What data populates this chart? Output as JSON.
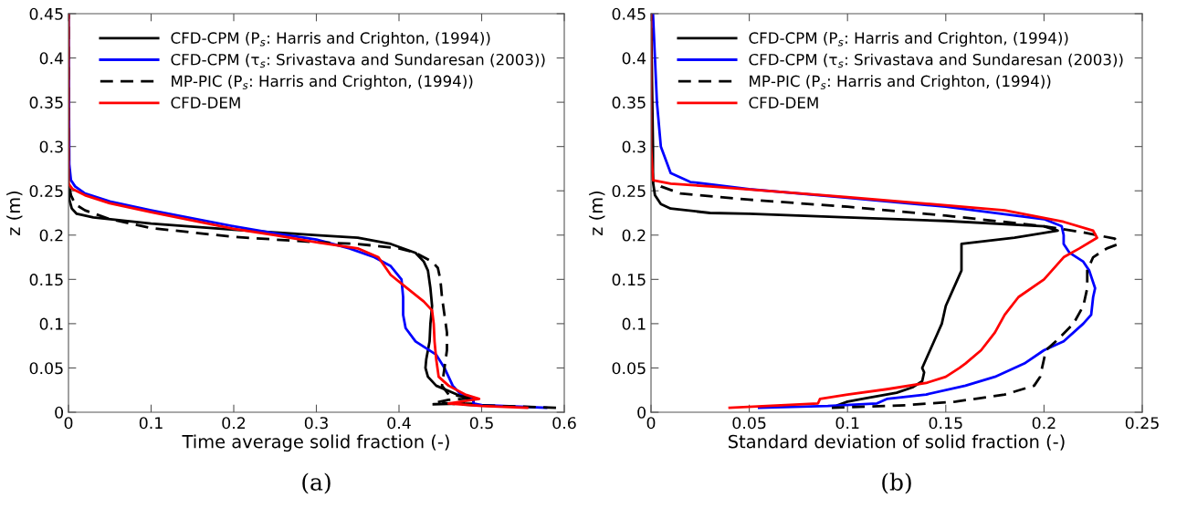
{
  "chart_data": [
    {
      "type": "line",
      "xlabel": "Time average solid fraction (-)",
      "ylabel": "z (m)",
      "annotations": [
        "(a)"
      ],
      "xlim": [
        0,
        0.6
      ],
      "xticks": [
        0,
        0.1,
        0.2,
        0.3,
        0.4,
        0.5,
        0.6
      ],
      "ylim": [
        0,
        0.45
      ],
      "yticks": [
        0,
        0.05,
        0.1,
        0.15,
        0.2,
        0.25,
        0.3,
        0.35,
        0.4,
        0.45
      ],
      "grid": false,
      "legend": "top right",
      "series": [
        {
          "name": "CFD-CPM (P$_{s}$: Harris and Crighton, (1994))",
          "color": "#000000",
          "line_style": "solid",
          "x": [
            0.442,
            0.49,
            0.49,
            0.47,
            0.445,
            0.435,
            0.432,
            0.433,
            0.435,
            0.437,
            0.438,
            0.44,
            0.438,
            0.435,
            0.43,
            0.42,
            0.39,
            0.35,
            0.3,
            0.2,
            0.1,
            0.03,
            0.01,
            0.004,
            0.001,
            0,
            0
          ],
          "values": [
            0.009,
            0.01,
            0.015,
            0.02,
            0.03,
            0.04,
            0.05,
            0.06,
            0.07,
            0.08,
            0.1,
            0.12,
            0.14,
            0.16,
            0.17,
            0.18,
            0.19,
            0.197,
            0.2,
            0.206,
            0.213,
            0.22,
            0.224,
            0.23,
            0.24,
            0.26,
            0.45
          ]
        },
        {
          "name": "CFD-CPM (τ$_{s}$: Srivastava and Sundaresan (2003))",
          "color": "#0000ff",
          "line_style": "solid",
          "x": [
            0.578,
            0.5,
            0.49,
            0.49,
            0.475,
            0.465,
            0.46,
            0.455,
            0.445,
            0.42,
            0.408,
            0.405,
            0.405,
            0.403,
            0.39,
            0.37,
            0.34,
            0.3,
            0.25,
            0.2,
            0.1,
            0.05,
            0.02,
            0.008,
            0.003,
            0.001,
            0
          ],
          "values": [
            0.005,
            0.008,
            0.01,
            0.014,
            0.02,
            0.03,
            0.04,
            0.05,
            0.065,
            0.08,
            0.095,
            0.11,
            0.13,
            0.15,
            0.165,
            0.175,
            0.185,
            0.195,
            0.202,
            0.21,
            0.228,
            0.238,
            0.247,
            0.255,
            0.262,
            0.28,
            0.45
          ]
        },
        {
          "name": "MP-PIC (P$_{s}$: Harris and Crighton, (1994))",
          "color": "#000000",
          "line_style": "dashed",
          "x": [
            0.59,
            0.49,
            0.445,
            0.46,
            0.49,
            0.46,
            0.452,
            0.455,
            0.458,
            0.458,
            0.455,
            0.452,
            0.45,
            0.447,
            0.44,
            0.42,
            0.4,
            0.35,
            0.3,
            0.2,
            0.1,
            0.05,
            0.02,
            0.008,
            0.003,
            0,
            0
          ],
          "values": [
            0.005,
            0.008,
            0.011,
            0.014,
            0.016,
            0.02,
            0.03,
            0.05,
            0.07,
            0.09,
            0.11,
            0.13,
            0.15,
            0.163,
            0.17,
            0.18,
            0.185,
            0.19,
            0.192,
            0.198,
            0.208,
            0.218,
            0.228,
            0.235,
            0.245,
            0.26,
            0.45
          ]
        },
        {
          "name": "CFD-DEM",
          "color": "#ff0000",
          "line_style": "solid",
          "x": [
            0.555,
            0.5,
            0.46,
            0.497,
            0.48,
            0.46,
            0.448,
            0.445,
            0.443,
            0.442,
            0.44,
            0.43,
            0.41,
            0.39,
            0.375,
            0.35,
            0.3,
            0.25,
            0.2,
            0.1,
            0.05,
            0.02,
            0.005,
            0,
            0
          ],
          "values": [
            0.005,
            0.007,
            0.01,
            0.015,
            0.02,
            0.03,
            0.04,
            0.06,
            0.08,
            0.1,
            0.115,
            0.125,
            0.14,
            0.155,
            0.175,
            0.185,
            0.192,
            0.2,
            0.207,
            0.226,
            0.236,
            0.245,
            0.252,
            0.258,
            0.45
          ]
        }
      ]
    },
    {
      "type": "line",
      "xlabel": "Standard deviation of solid fraction (-)",
      "ylabel": "z (m)",
      "annotations": [
        "(b)"
      ],
      "xlim": [
        0,
        0.25
      ],
      "xticks": [
        0,
        0.05,
        0.1,
        0.15,
        0.2,
        0.25
      ],
      "ylim": [
        0,
        0.45
      ],
      "yticks": [
        0,
        0.05,
        0.1,
        0.15,
        0.2,
        0.25,
        0.3,
        0.35,
        0.4,
        0.45
      ],
      "grid": false,
      "legend": "top right",
      "series": [
        {
          "name": "CFD-CPM (P$_{s}$: Harris and Crighton, (1994))",
          "color": "#000000",
          "line_style": "solid",
          "x": [
            0.095,
            0.1,
            0.11,
            0.125,
            0.133,
            0.138,
            0.139,
            0.138,
            0.14,
            0.145,
            0.148,
            0.15,
            0.153,
            0.158,
            0.158,
            0.158,
            0.185,
            0.207,
            0.2,
            0.15,
            0.1,
            0.05,
            0.03,
            0.01,
            0.005,
            0.002,
            0.001,
            0.001,
            0
          ],
          "values": [
            0.008,
            0.012,
            0.016,
            0.022,
            0.028,
            0.035,
            0.045,
            0.05,
            0.06,
            0.085,
            0.1,
            0.12,
            0.135,
            0.16,
            0.18,
            0.19,
            0.197,
            0.205,
            0.21,
            0.216,
            0.22,
            0.224,
            0.225,
            0.23,
            0.235,
            0.245,
            0.26,
            0.3,
            0.45
          ]
        },
        {
          "name": "CFD-CPM (τ$_{s}$: Srivastava and Sundaresan (2003))",
          "color": "#0000ff",
          "line_style": "solid",
          "x": [
            0.055,
            0.09,
            0.115,
            0.12,
            0.14,
            0.16,
            0.175,
            0.19,
            0.2,
            0.21,
            0.22,
            0.224,
            0.225,
            0.226,
            0.223,
            0.22,
            0.213,
            0.21,
            0.21,
            0.209,
            0.2,
            0.15,
            0.1,
            0.05,
            0.02,
            0.01,
            0.005,
            0.003,
            0.001
          ],
          "values": [
            0.005,
            0.007,
            0.01,
            0.015,
            0.02,
            0.03,
            0.04,
            0.055,
            0.07,
            0.08,
            0.1,
            0.11,
            0.13,
            0.14,
            0.16,
            0.17,
            0.18,
            0.19,
            0.2,
            0.21,
            0.218,
            0.232,
            0.242,
            0.252,
            0.26,
            0.27,
            0.3,
            0.35,
            0.45
          ]
        },
        {
          "name": "MP-PIC (P$_{s}$: Harris and Crighton, (1994))",
          "color": "#000000",
          "line_style": "dashed",
          "x": [
            0.092,
            0.13,
            0.155,
            0.18,
            0.195,
            0.198,
            0.2,
            0.201,
            0.206,
            0.215,
            0.22,
            0.222,
            0.222,
            0.225,
            0.232,
            0.238,
            0.236,
            0.22,
            0.2,
            0.15,
            0.1,
            0.05,
            0.015,
            0.005,
            0.001,
            0,
            0
          ],
          "values": [
            0.005,
            0.008,
            0.012,
            0.02,
            0.03,
            0.04,
            0.06,
            0.07,
            0.08,
            0.1,
            0.12,
            0.14,
            0.16,
            0.175,
            0.185,
            0.19,
            0.196,
            0.203,
            0.21,
            0.222,
            0.232,
            0.24,
            0.247,
            0.255,
            0.262,
            0.3,
            0.45
          ]
        },
        {
          "name": "CFD-DEM",
          "color": "#ff0000",
          "line_style": "solid",
          "x": [
            0.04,
            0.085,
            0.086,
            0.1,
            0.12,
            0.14,
            0.15,
            0.157,
            0.16,
            0.168,
            0.175,
            0.18,
            0.187,
            0.2,
            0.21,
            0.218,
            0.227,
            0.225,
            0.21,
            0.18,
            0.1,
            0.03,
            0.01,
            0.001,
            0,
            0
          ],
          "values": [
            0.005,
            0.01,
            0.015,
            0.02,
            0.026,
            0.033,
            0.04,
            0.05,
            0.055,
            0.07,
            0.09,
            0.11,
            0.13,
            0.15,
            0.175,
            0.185,
            0.197,
            0.205,
            0.215,
            0.228,
            0.243,
            0.255,
            0.258,
            0.262,
            0.3,
            0.45
          ]
        }
      ]
    }
  ]
}
